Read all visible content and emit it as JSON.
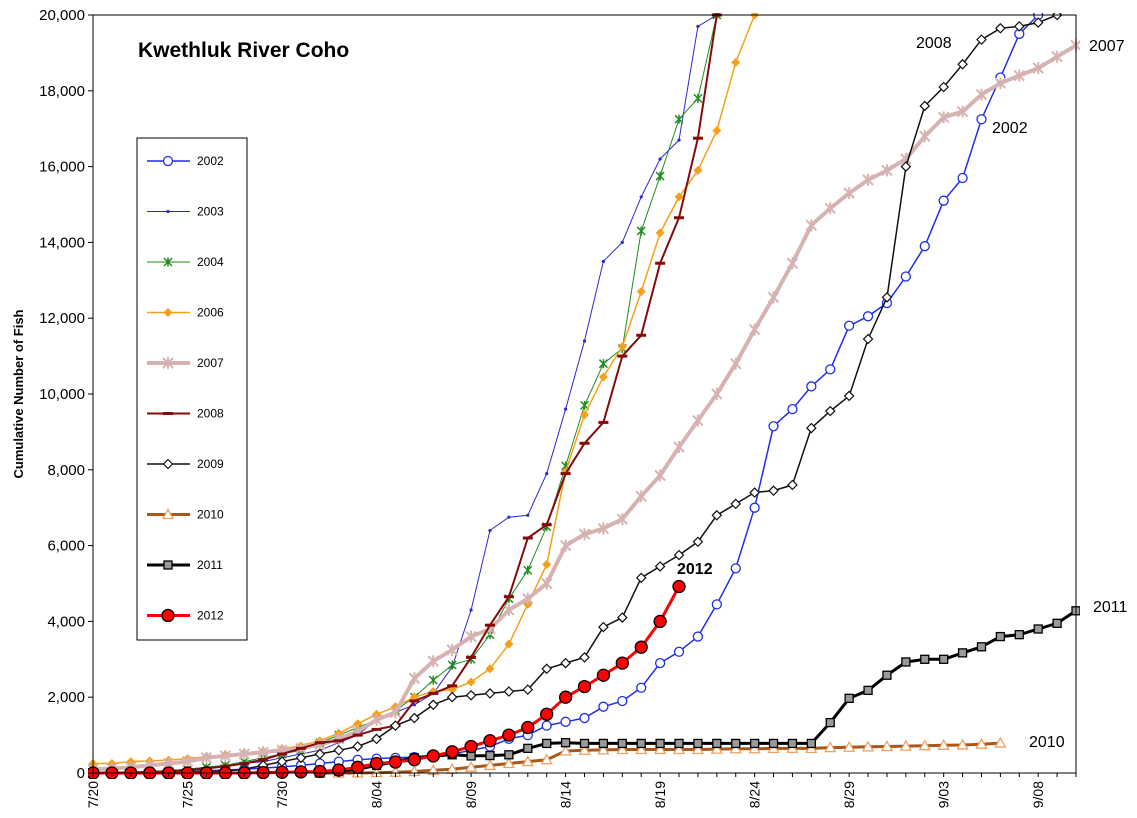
{
  "chart_data": {
    "type": "line",
    "title": "Kwethluk River Coho",
    "y_label": "Cumulative Number of Fish",
    "categories": [
      "7/20",
      null,
      null,
      null,
      null,
      "7/25",
      null,
      null,
      null,
      null,
      "7/30",
      null,
      null,
      null,
      null,
      "8/04",
      null,
      null,
      null,
      null,
      "8/09",
      null,
      null,
      null,
      null,
      "8/14",
      null,
      null,
      null,
      null,
      "8/19",
      null,
      null,
      null,
      null,
      "8/24",
      null,
      null,
      null,
      null,
      "8/29",
      null,
      null,
      null,
      null,
      "9/03",
      null,
      null,
      null,
      null,
      "9/08",
      null,
      null
    ],
    "ylim": [
      0,
      20000
    ],
    "yticks": [
      0,
      {
        "value": 2000,
        "label": "2,000"
      },
      {
        "value": 4000,
        "label": "4,000"
      },
      {
        "value": 6000,
        "label": "6,000"
      },
      {
        "value": 8000,
        "label": "8,000"
      },
      {
        "value": 10000,
        "label": "10,000"
      },
      {
        "value": 12000,
        "label": "12,000"
      },
      {
        "value": 14000,
        "label": "14,000"
      },
      {
        "value": 16000,
        "label": "16,000"
      },
      {
        "value": 18000,
        "label": "18,000"
      },
      {
        "value": 20000,
        "label": "20,000"
      }
    ],
    "grid": false,
    "series": [
      {
        "name": "2002",
        "color": "#1f2fe6",
        "marker": "circle-open",
        "line_width": 1.5,
        "values": [
          0,
          0,
          0,
          10,
          20,
          40,
          60,
          80,
          100,
          130,
          160,
          200,
          250,
          300,
          350,
          380,
          400,
          420,
          450,
          500,
          600,
          700,
          900,
          1000,
          1250,
          1350,
          1450,
          1750,
          1900,
          2250,
          2900,
          3200,
          3600,
          4450,
          5400,
          7000,
          9150,
          9600,
          10200,
          10650,
          11800,
          12050,
          12400,
          13100,
          13900,
          15100,
          15700,
          17250,
          18350,
          19500,
          20000,
          null,
          null
        ]
      },
      {
        "name": "2003",
        "color": "#2a2ad0",
        "marker": "dot",
        "line_width": 1,
        "values": [
          0,
          10,
          20,
          40,
          60,
          100,
          150,
          200,
          250,
          300,
          400,
          500,
          600,
          800,
          1000,
          1400,
          1600,
          1800,
          2100,
          2800,
          4300,
          6400,
          6750,
          6800,
          7900,
          9600,
          11400,
          13500,
          14000,
          15200,
          16200,
          16700,
          19700,
          20000,
          null,
          null,
          null,
          null,
          null,
          null,
          null,
          null,
          null,
          null,
          null,
          null,
          null,
          null,
          null,
          null,
          null,
          null,
          null
        ]
      },
      {
        "name": "2004",
        "color": "#1e8c1e",
        "marker": "star",
        "line_width": 1,
        "values": [
          0,
          10,
          20,
          40,
          60,
          100,
          150,
          200,
          300,
          400,
          500,
          600,
          800,
          1000,
          1200,
          1400,
          1650,
          2000,
          2450,
          2850,
          3000,
          3650,
          4600,
          5350,
          6500,
          8100,
          9700,
          10800,
          11200,
          14300,
          15750,
          17250,
          17800,
          20000,
          null,
          null,
          null,
          null,
          null,
          null,
          null,
          null,
          null,
          null,
          null,
          null,
          null,
          null,
          null,
          null,
          null,
          null,
          null
        ]
      },
      {
        "name": "2006",
        "color": "#f5a01a",
        "marker": "diamond",
        "line_width": 1.5,
        "values": [
          250,
          250,
          300,
          320,
          340,
          380,
          430,
          480,
          520,
          570,
          640,
          720,
          850,
          1050,
          1300,
          1550,
          1750,
          2000,
          2150,
          2200,
          2400,
          2750,
          3400,
          4450,
          5500,
          7950,
          9450,
          10450,
          11250,
          12700,
          14250,
          15200,
          15900,
          16950,
          18750,
          20000,
          null,
          null,
          null,
          null,
          null,
          null,
          null,
          null,
          null,
          null,
          null,
          null,
          null,
          null,
          null,
          null,
          null
        ]
      },
      {
        "name": "2007",
        "color": "#d7b2b2",
        "marker": "asterisk",
        "line_width": 4,
        "values": [
          100,
          120,
          150,
          200,
          250,
          300,
          400,
          450,
          500,
          550,
          600,
          650,
          750,
          900,
          1100,
          1400,
          1600,
          2500,
          2950,
          3250,
          3600,
          3800,
          4300,
          4600,
          5000,
          6000,
          6300,
          6450,
          6700,
          7300,
          7850,
          8600,
          9300,
          10000,
          10800,
          11700,
          12550,
          13450,
          14450,
          14900,
          15300,
          15650,
          15900,
          16200,
          16800,
          17300,
          17450,
          17900,
          18200,
          18400,
          18600,
          18900,
          19200
        ]
      },
      {
        "name": "2008",
        "color": "#850a0a",
        "marker": "dash",
        "line_width": 2,
        "values": [
          0,
          10,
          20,
          30,
          50,
          80,
          120,
          180,
          250,
          350,
          500,
          650,
          800,
          850,
          1000,
          1150,
          1250,
          1900,
          2100,
          2300,
          3050,
          3900,
          4650,
          6200,
          6550,
          7900,
          8700,
          9250,
          11000,
          11550,
          13450,
          14650,
          16750,
          20000,
          null,
          null,
          null,
          null,
          null,
          null,
          null,
          null,
          null,
          null,
          null,
          null,
          null,
          null,
          null,
          null,
          null,
          null,
          null
        ]
      },
      {
        "name": "2009",
        "color": "#111111",
        "marker": "diamond-open",
        "line_width": 1.5,
        "values": [
          0,
          0,
          0,
          10,
          20,
          30,
          40,
          50,
          100,
          200,
          300,
          400,
          500,
          600,
          700,
          900,
          1250,
          1450,
          1800,
          2000,
          2050,
          2100,
          2150,
          2200,
          2750,
          2900,
          3050,
          3850,
          4100,
          5150,
          5450,
          5750,
          6100,
          6800,
          7100,
          7400,
          7450,
          7600,
          9100,
          9550,
          9950,
          11450,
          12550,
          16000,
          17600,
          18100,
          18700,
          19350,
          19650,
          19700,
          19800,
          20000,
          null
        ]
      },
      {
        "name": "2010",
        "color": "#a8581c",
        "marker": "triangle-open",
        "marker_color": "#f0a060",
        "line_width": 3,
        "values": [
          null,
          null,
          null,
          null,
          null,
          null,
          null,
          null,
          null,
          null,
          null,
          null,
          0,
          0,
          0,
          10,
          20,
          40,
          70,
          100,
          150,
          200,
          250,
          300,
          350,
          580,
          600,
          610,
          620,
          620,
          620,
          620,
          620,
          630,
          640,
          640,
          650,
          650,
          650,
          670,
          680,
          690,
          700,
          710,
          720,
          730,
          740,
          760,
          790,
          null,
          null,
          null,
          null
        ]
      },
      {
        "name": "2011",
        "color": "#000000",
        "marker": "square",
        "marker_color": "#9a9a9a",
        "line_width": 3,
        "values": [
          null,
          null,
          null,
          null,
          null,
          null,
          null,
          null,
          null,
          null,
          null,
          null,
          0,
          50,
          100,
          200,
          300,
          400,
          450,
          480,
          450,
          460,
          480,
          650,
          780,
          800,
          780,
          780,
          780,
          780,
          780,
          780,
          780,
          780,
          780,
          780,
          780,
          780,
          780,
          1330,
          1970,
          2180,
          2580,
          2930,
          3000,
          3000,
          3170,
          3330,
          3600,
          3650,
          3800,
          3950,
          4280
        ]
      },
      {
        "name": "2012",
        "color": "#ff0000",
        "marker": "circle-filled",
        "line_width": 3,
        "values": [
          0,
          0,
          0,
          0,
          0,
          0,
          0,
          0,
          0,
          10,
          20,
          30,
          40,
          80,
          150,
          250,
          290,
          350,
          450,
          560,
          700,
          850,
          1000,
          1200,
          1550,
          2000,
          2280,
          2580,
          2900,
          3320,
          4000,
          4920,
          null,
          null,
          null,
          null,
          null,
          null,
          null,
          null,
          null,
          null,
          null,
          null,
          null,
          null,
          null,
          null,
          null,
          null,
          null,
          null,
          null
        ]
      }
    ],
    "annotations": [
      "2008",
      "2007",
      "2002",
      "2012",
      "2011",
      "2010"
    ]
  }
}
